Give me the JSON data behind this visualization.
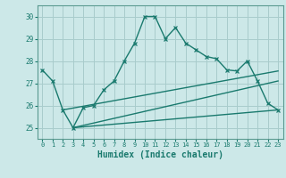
{
  "title": "",
  "xlabel": "Humidex (Indice chaleur)",
  "bg_color": "#cce8e8",
  "grid_color": "#a8cccc",
  "line_color": "#1a7a6e",
  "spine_color": "#5a9a90",
  "xlim": [
    -0.5,
    23.5
  ],
  "ylim": [
    24.5,
    30.5
  ],
  "yticks": [
    25,
    26,
    27,
    28,
    29,
    30
  ],
  "xticks": [
    0,
    1,
    2,
    3,
    4,
    5,
    6,
    7,
    8,
    9,
    10,
    11,
    12,
    13,
    14,
    15,
    16,
    17,
    18,
    19,
    20,
    21,
    22,
    23
  ],
  "curve1_x": [
    0,
    1,
    2,
    3,
    4,
    5,
    6,
    7,
    8,
    9,
    10,
    11,
    12,
    13,
    14,
    15,
    16,
    17,
    18,
    19,
    20,
    21,
    22,
    23
  ],
  "curve1_y": [
    27.6,
    27.1,
    25.8,
    25.0,
    25.9,
    26.0,
    26.7,
    27.1,
    28.0,
    28.8,
    30.0,
    30.0,
    29.0,
    29.5,
    28.8,
    28.5,
    28.2,
    28.1,
    27.6,
    27.55,
    28.0,
    27.1,
    26.1,
    25.8
  ],
  "line1_x": [
    2,
    23
  ],
  "line1_y": [
    25.8,
    27.55
  ],
  "line2_x": [
    3,
    23
  ],
  "line2_y": [
    25.0,
    27.1
  ],
  "line3_x": [
    3,
    23
  ],
  "line3_y": [
    25.0,
    25.8
  ]
}
